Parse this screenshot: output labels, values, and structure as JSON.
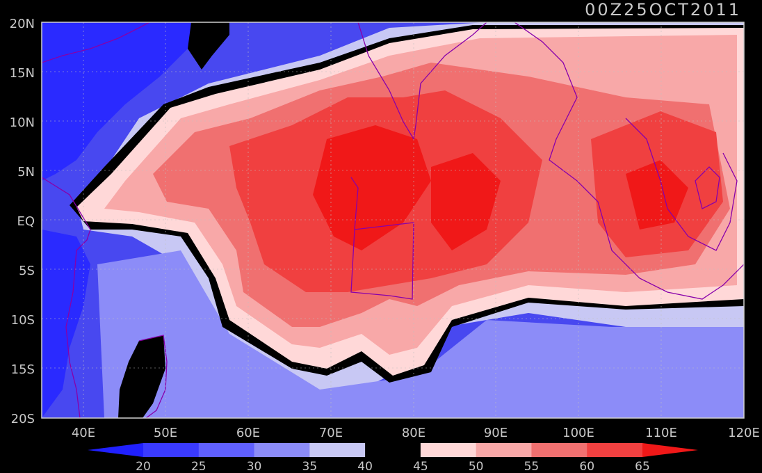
{
  "title": "00Z25OCT2011",
  "lat_labels": [
    "20N",
    "15N",
    "10N",
    "5N",
    "EQ",
    "5S",
    "10S",
    "15S",
    "20S"
  ],
  "lon_labels": [
    "40E",
    "50E",
    "60E",
    "70E",
    "80E",
    "90E",
    "100E",
    "110E",
    "120E"
  ],
  "colorbar": {
    "labels": [
      "20",
      "25",
      "30",
      "35",
      "40",
      "45",
      "50",
      "55",
      "60",
      "65"
    ],
    "colors": [
      "#2020ff",
      "#3a3aff",
      "#6060ff",
      "#8c8cf8",
      "#c8c8f4",
      "#000000",
      "#ffd8d8",
      "#f8a8a8",
      "#f07070",
      "#f04040",
      "#f01818"
    ]
  },
  "land_color": "#8800aa",
  "grid_color": "#c0c0c0"
}
